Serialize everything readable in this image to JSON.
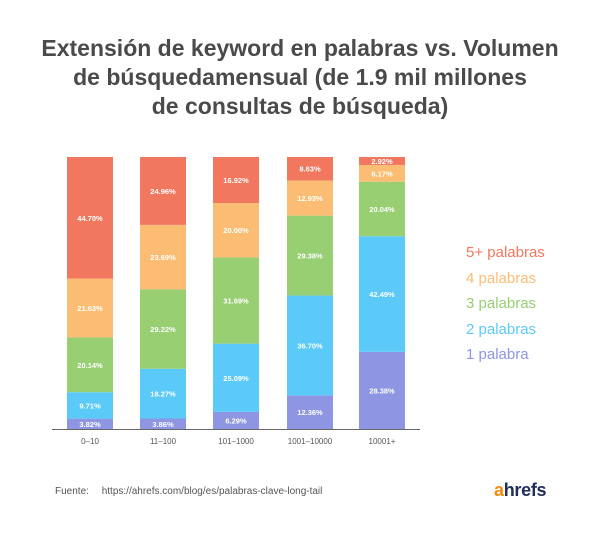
{
  "title_lines": [
    "Extensión de keyword en palabras vs. Volumen",
    "de búsquedamensual (de 1.9 mil millones",
    "de consultas de búsqueda)"
  ],
  "chart_data": {
    "type": "bar",
    "stacked": true,
    "normalized_100": true,
    "title": "Extensión de keyword en palabras vs. Volumen de búsquedamensual (de 1.9 mil millones de consultas de búsqueda)",
    "categories": [
      "0–10",
      "11–100",
      "101–1000",
      "1001–10000",
      "10001+"
    ],
    "ylim": [
      0,
      100
    ],
    "grid": false,
    "legend_position": "right",
    "series": [
      {
        "name": "1 palabra",
        "color": "#8e96e3",
        "values": [
          3.82,
          3.86,
          6.29,
          12.36,
          28.38
        ],
        "labels": [
          "3.82%",
          "3.86%",
          "6.29%",
          "12.36%",
          "28.38%"
        ]
      },
      {
        "name": "2 palabras",
        "color": "#5bcaf9",
        "values": [
          9.71,
          18.27,
          25.09,
          36.7,
          42.49
        ],
        "labels": [
          "9.71%",
          "18.27%",
          "25.09%",
          "36.70%",
          "42.49%"
        ]
      },
      {
        "name": "3 palabras",
        "color": "#98cf72",
        "values": [
          20.14,
          29.22,
          31.69,
          29.38,
          20.04
        ],
        "labels": [
          "20.14%",
          "29.22%",
          "31.69%",
          "29.38%",
          "20.04%"
        ]
      },
      {
        "name": "4 palabras",
        "color": "#fbbd74",
        "values": [
          21.63,
          23.69,
          20.0,
          12.93,
          6.17
        ],
        "labels": [
          "21.63%",
          "23.69%",
          "20.00%",
          "12.93%",
          "6.17%"
        ]
      },
      {
        "name": "5+ palabras",
        "color": "#f2775f",
        "values": [
          44.7,
          24.96,
          16.92,
          8.63,
          2.92
        ],
        "labels": [
          "44.70%",
          "24.96%",
          "16.92%",
          "8.63%",
          "2.92%"
        ]
      }
    ]
  },
  "legend_order": [
    4,
    3,
    2,
    1,
    0
  ],
  "footer": {
    "label": "Fuente:",
    "url": "https://ahrefs.com/blog/es/palabras-clave-long-tail"
  },
  "logo": {
    "first": "a",
    "rest": "hrefs"
  }
}
